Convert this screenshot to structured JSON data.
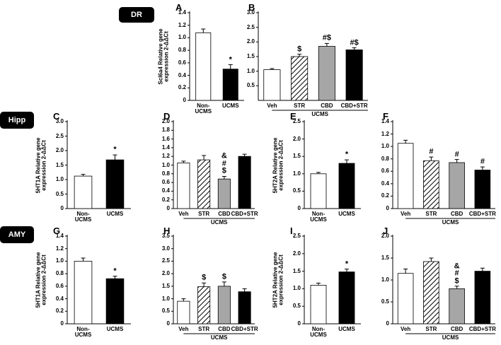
{
  "regions": [
    "DR",
    "Hipp",
    "AMY"
  ],
  "chart_data": [
    {
      "type": "bar",
      "panel": "A",
      "ylabel": "Scl6a4 Relative gene\nexpression 2-ΔΔCt",
      "categories": [
        "Non-\nUCMS",
        "UCMS"
      ],
      "values": [
        1.08,
        0.5
      ],
      "errors": [
        0.06,
        0.07
      ],
      "colors": [
        "#ffffff",
        "#000000"
      ],
      "annotations": [
        null,
        "*"
      ],
      "ylim": [
        0,
        1.4
      ],
      "yticks": [
        0,
        0.2,
        0.4,
        0.6,
        0.8,
        {
          "value": 1,
          "label": "1.0"
        },
        1.2,
        1.4
      ]
    },
    {
      "type": "bar",
      "panel": "B",
      "categories": [
        "Veh",
        "STR",
        "CBD",
        "CBD+STR"
      ],
      "group_label": "UCMS",
      "values": [
        1.05,
        1.5,
        1.85,
        1.73
      ],
      "errors": [
        0.04,
        0.08,
        0.1,
        0.07
      ],
      "colors": [
        "#ffffff",
        "hatch",
        "#a6a6a6",
        "#000000"
      ],
      "annotations": [
        null,
        "$",
        "#$",
        "#$"
      ],
      "ylim": [
        0,
        3
      ],
      "yticks": [
        0.5,
        {
          "value": 1,
          "label": "1.0"
        },
        1.5,
        {
          "value": 2,
          "label": "2.0"
        },
        2.5,
        {
          "value": 3,
          "label": "3.0"
        }
      ]
    },
    {
      "type": "bar",
      "panel": "C",
      "ylabel": "5HT1A Relative gene\nexpression 2-ΔΔCt",
      "categories": [
        "Non-\nUCMS",
        "UCMS"
      ],
      "values": [
        1.12,
        1.68
      ],
      "errors": [
        0.06,
        0.17
      ],
      "colors": [
        "#ffffff",
        "#000000"
      ],
      "annotations": [
        null,
        "*"
      ],
      "ylim": [
        0,
        3
      ],
      "yticks": [
        0,
        0.5,
        {
          "value": 1,
          "label": "1.0"
        },
        1.5,
        {
          "value": 2,
          "label": "2.0"
        },
        2.5,
        {
          "value": 3,
          "label": "3.0"
        }
      ]
    },
    {
      "type": "bar",
      "panel": "D",
      "categories": [
        "Veh",
        "STR",
        "CBD",
        "CBD+STR"
      ],
      "group_label": "UCMS",
      "values": [
        1.05,
        1.12,
        0.68,
        1.2
      ],
      "errors": [
        0.04,
        0.1,
        0.06,
        0.05
      ],
      "colors": [
        "#ffffff",
        "hatch",
        "#a6a6a6",
        "#000000"
      ],
      "annotations": [
        null,
        null,
        "&\n#\n$",
        null
      ],
      "ylim": [
        0,
        2
      ],
      "yticks": [
        0,
        0.2,
        0.4,
        0.6,
        0.8,
        {
          "value": 1,
          "label": "1.0"
        },
        1.2,
        1.4,
        1.6,
        1.8,
        {
          "value": 2,
          "label": "2.0"
        }
      ]
    },
    {
      "type": "bar",
      "panel": "E",
      "ylabel": "5HT2A Relative gene\nexpression 2-ΔΔCt",
      "categories": [
        "Non-\nUCMS",
        "UCMS"
      ],
      "values": [
        1.0,
        1.3
      ],
      "errors": [
        0.04,
        0.1
      ],
      "colors": [
        "#ffffff",
        "#000000"
      ],
      "annotations": [
        null,
        "*"
      ],
      "ylim": [
        0,
        2.5
      ],
      "yticks": [
        0,
        0.5,
        {
          "value": 1,
          "label": "1.0"
        },
        1.5,
        {
          "value": 2,
          "label": "2.0"
        },
        2.5
      ]
    },
    {
      "type": "bar",
      "panel": "F",
      "categories": [
        "Veh",
        "STR",
        "CBD",
        "CBD+STR"
      ],
      "group_label": "UCMS",
      "values": [
        1.05,
        0.77,
        0.74,
        0.62
      ],
      "errors": [
        0.05,
        0.06,
        0.05,
        0.05
      ],
      "colors": [
        "#ffffff",
        "hatch",
        "#a6a6a6",
        "#000000"
      ],
      "annotations": [
        null,
        "#",
        "#",
        "#"
      ],
      "ylim": [
        0,
        1.4
      ],
      "yticks": [
        0,
        0.2,
        0.4,
        0.6,
        0.8,
        {
          "value": 1,
          "label": "1.0"
        },
        1.2,
        1.4
      ]
    },
    {
      "type": "bar",
      "panel": "G",
      "ylabel": "5HT1A Relative gene\nexpression 2-ΔΔCt",
      "categories": [
        "Non-\nUCMS",
        "UCMS"
      ],
      "values": [
        1.0,
        0.72
      ],
      "errors": [
        0.05,
        0.04
      ],
      "colors": [
        "#ffffff",
        "#000000"
      ],
      "annotations": [
        null,
        "*"
      ],
      "ylim": [
        0,
        1.4
      ],
      "yticks": [
        0,
        0.2,
        0.4,
        0.6,
        0.8,
        {
          "value": 1,
          "label": "1.0"
        },
        1.2,
        1.4
      ]
    },
    {
      "type": "bar",
      "panel": "H",
      "categories": [
        "Veh",
        "STR",
        "CBD",
        "CBD+STR"
      ],
      "group_label": "UCMS",
      "values": [
        0.9,
        1.48,
        1.5,
        1.28
      ],
      "errors": [
        0.1,
        0.15,
        0.17,
        0.12
      ],
      "colors": [
        "#ffffff",
        "hatch",
        "#a6a6a6",
        "#000000"
      ],
      "annotations": [
        null,
        "$",
        "$",
        null
      ],
      "ylim": [
        0,
        3.5
      ],
      "yticks": [
        0,
        0.5,
        {
          "value": 1,
          "label": "1.0"
        },
        1.5,
        {
          "value": 2,
          "label": "2.0"
        },
        2.5,
        {
          "value": 3,
          "label": "3.0"
        },
        3.5
      ]
    },
    {
      "type": "bar",
      "panel": "I",
      "ylabel": "5HT2A Relative gene\nexpression 2-ΔΔCt",
      "categories": [
        "Non-\nUCMS",
        "UCMS"
      ],
      "values": [
        1.1,
        1.48
      ],
      "errors": [
        0.06,
        0.08
      ],
      "colors": [
        "#ffffff",
        "#000000"
      ],
      "annotations": [
        null,
        "*"
      ],
      "ylim": [
        0,
        2.5
      ],
      "yticks": [
        0,
        0.5,
        {
          "value": 1,
          "label": "1.0"
        },
        1.5,
        {
          "value": 2,
          "label": "2.0"
        },
        2.5
      ]
    },
    {
      "type": "bar",
      "panel": "J",
      "categories": [
        "Veh",
        "STR",
        "CBD",
        "CBD+STR"
      ],
      "group_label": "UCMS",
      "values": [
        1.15,
        1.42,
        0.8,
        1.2
      ],
      "errors": [
        0.1,
        0.08,
        0.06,
        0.07
      ],
      "colors": [
        "#ffffff",
        "hatch",
        "#a6a6a6",
        "#000000"
      ],
      "annotations": [
        null,
        null,
        "&\n#\n$",
        null
      ],
      "ylim": [
        0,
        2
      ],
      "yticks": [
        0,
        0.5,
        {
          "value": 1,
          "label": "1.0"
        },
        1.5,
        {
          "value": 2,
          "label": "2.0"
        }
      ]
    }
  ]
}
